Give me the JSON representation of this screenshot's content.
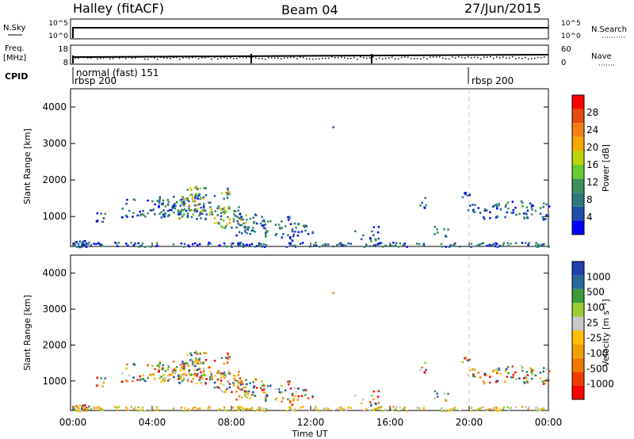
{
  "header": {
    "site": "Halley (fitACF)",
    "beam": "Beam 04",
    "date": "27/Jun/2015"
  },
  "top_panels": {
    "nsky_label": "N.Sky",
    "nsearch_label": "N.Search",
    "nsky_ticks": [
      "10^5",
      "10^0"
    ],
    "nsearch_ticks": [
      "10^5",
      "10^0"
    ],
    "freq_label": "Freq.",
    "freq_unit": "[MHz]",
    "freq_ticks": [
      "18",
      "8"
    ],
    "nave_label": "Nave",
    "nave_ticks": [
      "60",
      "0"
    ],
    "cpid_label": "CPID",
    "cpid_entries": [
      "normal (fast) 151",
      "rbsp 200",
      "rbsp 200"
    ]
  },
  "x_axis": {
    "label": "Time UT",
    "ticks": [
      "00:00",
      "04:00",
      "08:00",
      "12:00",
      "16:00",
      "20:00",
      "00:00"
    ]
  },
  "colors": {
    "power": [
      "#0000ff",
      "#1f4fa8",
      "#2a7a7a",
      "#3a8f5a",
      "#66cc33",
      "#bcd40a",
      "#f5a800",
      "#f57f17",
      "#e54a10",
      "#ff0000"
    ],
    "velocity": [
      "#ff0000",
      "#f03c00",
      "#f07800",
      "#f0a000",
      "#ffc000",
      "#c8c8c8",
      "#9acd32",
      "#3a9a3a",
      "#2a6a9a",
      "#1f3fb0"
    ]
  },
  "chart_data": [
    {
      "type": "heatmap",
      "ylabel": "Slant Range [km]",
      "xlabel": "Time UT",
      "xlim_hours": [
        0,
        24
      ],
      "ylim": [
        180,
        4500
      ],
      "y_ticks": [
        "1000",
        "2000",
        "3000",
        "4000"
      ],
      "colorbar_label": "Power [dB]",
      "colorbar_ticks": [
        "4",
        "8",
        "12",
        "16",
        "20",
        "24",
        "28"
      ],
      "colorbar_range": [
        0,
        32
      ],
      "dashed_marker_hour": 20
    },
    {
      "type": "heatmap",
      "ylabel": "Slant Range [km]",
      "xlabel": "Time UT",
      "xlim_hours": [
        0,
        24
      ],
      "ylim": [
        180,
        4500
      ],
      "y_ticks": [
        "1000",
        "2000",
        "3000",
        "4000"
      ],
      "colorbar_label": "Velocity [m s⁻¹]",
      "colorbar_ticks": [
        "-1000",
        "-500",
        "-100",
        "-25",
        "25",
        "100",
        "500",
        "1000"
      ],
      "dashed_marker_hour": 20
    }
  ]
}
